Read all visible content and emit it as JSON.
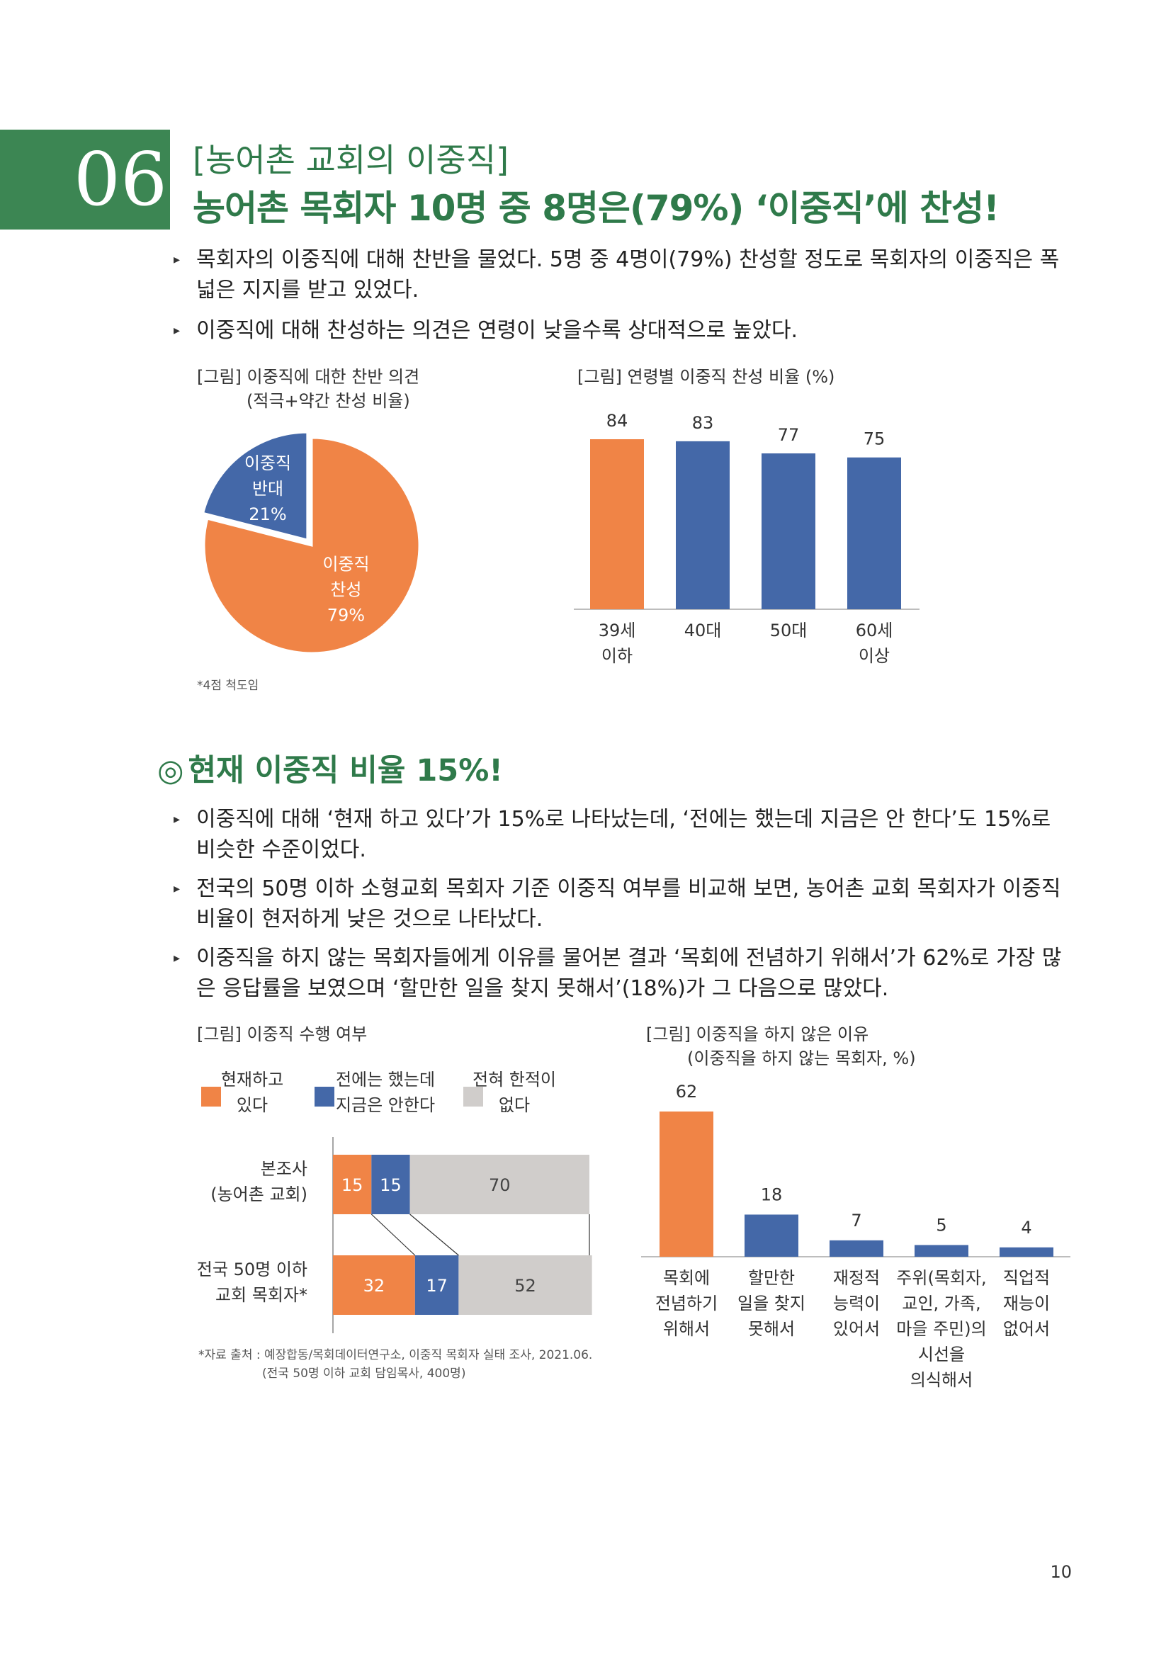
{
  "header": {
    "number": "06",
    "kicker": "[농어촌 교회의 이중직]",
    "headline": "농어촌 목회자 10명 중 8명은(79%) ‘이중직’에 찬성!"
  },
  "intro_bullets": [
    "목회자의 이중직에 대해 찬반을 물었다. 5명 중 4명이(79%) 찬성할 정도로 목회자의 이중직은 폭 넓은 지지를 받고 있었다.",
    "이중직에 대해 찬성하는 의견은 연령이 낮을수록 상대적으로 높았다."
  ],
  "fig1": {
    "title_line1": "[그림] 이중직에 대한 찬반 의견",
    "title_line2": "(적극+약간 찬성 비율)",
    "note": "*4점 척도임"
  },
  "fig2": {
    "title": "[그림] 연령별 이중직 찬성 비율 (%)"
  },
  "section2": {
    "circle": "◎",
    "title": "현재 이중직 비율 15%!",
    "bullets": [
      "이중직에 대해 ‘현재 하고 있다’가 15%로 나타났는데, ‘전에는 했는데 지금은 안 한다’도 15%로 비슷한 수준이었다.",
      "전국의 50명 이하 소형교회 목회자 기준 이중직 여부를 비교해 보면, 농어촌 교회 목회자가 이중직 비율이 현저하게 낮은 것으로 나타났다.",
      "이중직을 하지 않는 목회자들에게 이유를 물어본 결과 ‘목회에 전념하기 위해서’가 62%로 가장 많은 응답률을 보였으며 ‘할만한 일을 찾지 못해서’(18%)가 그 다음으로 많았다."
    ]
  },
  "fig3": {
    "title": "[그림] 이중직 수행 여부",
    "source_line1": "*자료 출처 : 예장합동/목회데이터연구소, 이중직 목회자 실태 조사, 2021.06.",
    "source_line2": "(전국 50명 이하 교회 담임목사, 400명)"
  },
  "fig4": {
    "title_line1": "[그림] 이중직을 하지 않은 이유",
    "title_line2": "(이중직을 하지 않는 목회자, %)"
  },
  "page_number": "10",
  "colors": {
    "orange": "#f08446",
    "blue": "#4468a8",
    "gray": "#d0cdcb",
    "green": "#3c8653"
  },
  "chart_data": [
    {
      "type": "pie",
      "labels": [
        [
          "이중직",
          "찬성",
          "79%"
        ],
        [
          "이중직",
          "반대",
          "21%"
        ]
      ],
      "values": [
        79,
        21
      ]
    },
    {
      "type": "bar",
      "categories": [
        [
          "39세",
          "이하"
        ],
        [
          "40대"
        ],
        [
          "50대"
        ],
        [
          "60세",
          "이상"
        ]
      ],
      "values": [
        84,
        83,
        77,
        75
      ],
      "highlight_index": 0
    },
    {
      "type": "bar",
      "orientation": "horizontal-stacked",
      "legend": [
        [
          "현재하고",
          "있다"
        ],
        [
          "전에는 했는데",
          "지금은 안한다"
        ],
        [
          "전혀 한적이",
          "없다"
        ]
      ],
      "categories": [
        [
          "본조사",
          "(농어촌 교회)"
        ],
        [
          "전국 50명 이하",
          "교회 목회자*"
        ]
      ],
      "series": [
        {
          "values": [
            15,
            32
          ]
        },
        {
          "values": [
            15,
            17
          ]
        },
        {
          "values": [
            70,
            52
          ]
        }
      ]
    },
    {
      "type": "bar",
      "categories": [
        [
          "목회에",
          "전념하기",
          "위해서"
        ],
        [
          "할만한",
          "일을 찾지",
          "못해서"
        ],
        [
          "재정적",
          "능력이",
          "있어서"
        ],
        [
          "주위(목회자,",
          "교인, 가족,",
          "마을 주민)의",
          "시선을",
          "의식해서"
        ],
        [
          "직업적",
          "재능이",
          "없어서"
        ]
      ],
      "values": [
        62,
        18,
        7,
        5,
        4
      ],
      "highlight_index": 0
    }
  ]
}
